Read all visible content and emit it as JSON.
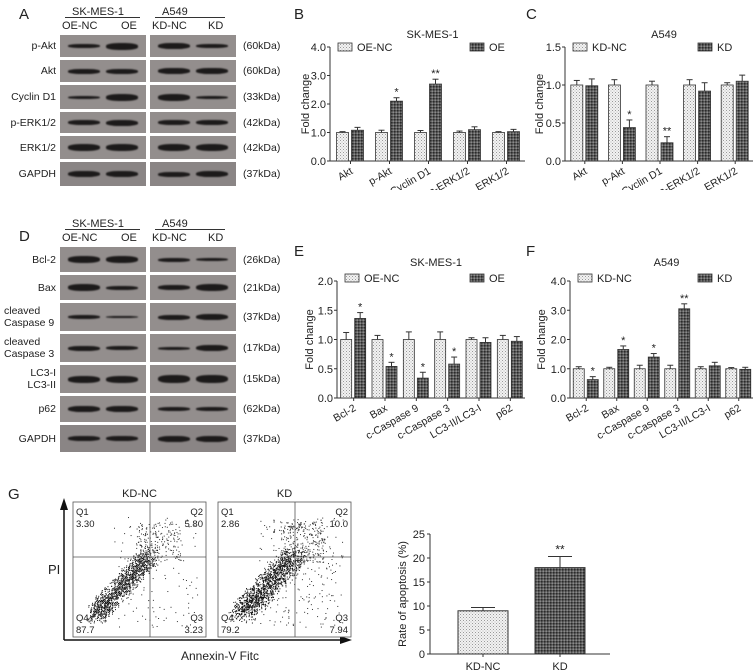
{
  "panels": {
    "A": {
      "letter": "A",
      "groups": [
        {
          "cell_line": "SK-MES-1",
          "lanes": [
            "OE-NC",
            "OE"
          ]
        },
        {
          "cell_line": "A549",
          "lanes": [
            "KD-NC",
            "KD"
          ]
        }
      ],
      "rows": [
        {
          "label": "p-Akt",
          "kda": "(60kDa)"
        },
        {
          "label": "Akt",
          "kda": "(60kDa)"
        },
        {
          "label": "Cyclin D1",
          "kda": "(33kDa)"
        },
        {
          "label": "p-ERK1/2",
          "kda": "(42kDa)"
        },
        {
          "label": "ERK1/2",
          "kda": "(42kDa)"
        },
        {
          "label": "GAPDH",
          "kda": "(37kDa)"
        }
      ]
    },
    "D": {
      "letter": "D",
      "groups": [
        {
          "cell_line": "SK-MES-1",
          "lanes": [
            "OE-NC",
            "OE"
          ]
        },
        {
          "cell_line": "A549",
          "lanes": [
            "KD-NC",
            "KD"
          ]
        }
      ],
      "rows": [
        {
          "label": "Bcl-2",
          "kda": "(26kDa)"
        },
        {
          "label": "Bax",
          "kda": "(21kDa)"
        },
        {
          "label": "cleaved\nCaspase 9",
          "kda": "(37kDa)"
        },
        {
          "label": "cleaved\nCaspase 3",
          "kda": "(17kDa)"
        },
        {
          "label": "LC3-I\nLC3-II",
          "kda": "(15kDa)"
        },
        {
          "label": "p62",
          "kda": "(62kDa)"
        },
        {
          "label": "GAPDH",
          "kda": "(37kDa)"
        }
      ]
    },
    "G": {
      "letter": "G",
      "flow": [
        {
          "title": "KD-NC",
          "Q1": "3.30",
          "Q2": "5.80",
          "Q3": "3.23",
          "Q4": "87.7"
        },
        {
          "title": "KD",
          "Q1": "2.86",
          "Q2": "10.0",
          "Q3": "7.94",
          "Q4": "79.2"
        }
      ],
      "quadrant_labels": [
        "Q1",
        "Q2",
        "Q3",
        "Q4"
      ],
      "y_axis": "PI",
      "x_axis": "Annexin-V Fitc"
    }
  },
  "chart_data": [
    {
      "id": "B",
      "type": "bar",
      "title": "SK-MES-1",
      "ylabel": "Fold change",
      "ylim": [
        0,
        4
      ],
      "yticks": [
        "0.0",
        "1.0",
        "2.0",
        "3.0",
        "4.0"
      ],
      "categories": [
        "Akt",
        "p-Akt",
        "Cyclin D1",
        "p-ERK1/2",
        "ERK1/2"
      ],
      "series": [
        {
          "name": "OE-NC",
          "values": [
            1.0,
            1.0,
            1.0,
            1.0,
            1.0
          ],
          "errors": [
            0.03,
            0.08,
            0.07,
            0.05,
            0.03
          ]
        },
        {
          "name": "OE",
          "values": [
            1.08,
            2.1,
            2.7,
            1.1,
            1.03
          ],
          "errors": [
            0.1,
            0.12,
            0.17,
            0.1,
            0.08
          ]
        }
      ],
      "significance": [
        "",
        "*",
        "**",
        "",
        ""
      ]
    },
    {
      "id": "C",
      "type": "bar",
      "title": "A549",
      "ylabel": "Fold change",
      "ylim": [
        0,
        1.5
      ],
      "yticks": [
        "0.0",
        "0.5",
        "1.0",
        "1.5"
      ],
      "categories": [
        "Akt",
        "p-Akt",
        "Cyclin D1",
        "p-ERK1/2",
        "ERK1/2"
      ],
      "series": [
        {
          "name": "KD-NC",
          "values": [
            1.0,
            1.0,
            1.0,
            1.0,
            1.0
          ],
          "errors": [
            0.06,
            0.07,
            0.05,
            0.07,
            0.03
          ]
        },
        {
          "name": "KD",
          "values": [
            0.99,
            0.44,
            0.24,
            0.92,
            1.05
          ],
          "errors": [
            0.09,
            0.1,
            0.08,
            0.11,
            0.08
          ]
        }
      ],
      "significance": [
        "",
        "*",
        "**",
        "",
        ""
      ]
    },
    {
      "id": "E",
      "type": "bar",
      "title": "SK-MES-1",
      "ylabel": "Fold change",
      "ylim": [
        0,
        2
      ],
      "yticks": [
        "0.0",
        "0.5",
        "1.0",
        "1.5",
        "2.0"
      ],
      "categories": [
        "Bcl-2",
        "Bax",
        "c-Caspase 9",
        "c-Caspase 3",
        "LC3-II/LC3-I",
        "p62"
      ],
      "series": [
        {
          "name": "OE-NC",
          "values": [
            1.0,
            1.0,
            1.0,
            1.0,
            1.0,
            1.0
          ],
          "errors": [
            0.12,
            0.07,
            0.13,
            0.13,
            0.03,
            0.07
          ]
        },
        {
          "name": "OE",
          "values": [
            1.36,
            0.54,
            0.34,
            0.58,
            0.95,
            0.97
          ],
          "errors": [
            0.1,
            0.07,
            0.1,
            0.12,
            0.08,
            0.08
          ]
        }
      ],
      "significance": [
        "*",
        "*",
        "*",
        "*",
        "",
        ""
      ]
    },
    {
      "id": "F",
      "type": "bar",
      "title": "A549",
      "ylabel": "Fold change",
      "ylim": [
        0,
        4
      ],
      "yticks": [
        "0.0",
        "1.0",
        "2.0",
        "3.0",
        "4.0"
      ],
      "categories": [
        "Bcl-2",
        "Bax",
        "c-Caspase 9",
        "c-Caspase 3",
        "LC3-II/LC3-I",
        "p62"
      ],
      "series": [
        {
          "name": "KD-NC",
          "values": [
            1.0,
            1.0,
            1.0,
            1.0,
            1.0,
            1.0
          ],
          "errors": [
            0.07,
            0.05,
            0.12,
            0.12,
            0.07,
            0.04
          ]
        },
        {
          "name": "KD",
          "values": [
            0.63,
            1.66,
            1.4,
            3.05,
            1.1,
            0.98
          ],
          "errors": [
            0.1,
            0.12,
            0.12,
            0.17,
            0.12,
            0.07
          ]
        }
      ],
      "significance": [
        "*",
        "*",
        "*",
        "**",
        "",
        ""
      ]
    },
    {
      "id": "G-bar",
      "type": "bar",
      "title": "",
      "ylabel": "Rate of apoptosis (%)",
      "ylim": [
        0,
        25
      ],
      "yticks": [
        "0",
        "5",
        "10",
        "15",
        "20",
        "25"
      ],
      "categories": [
        "KD-NC",
        "KD"
      ],
      "values": [
        9.0,
        18.0
      ],
      "errors": [
        0.7,
        2.3
      ],
      "significance": [
        "",
        "**"
      ]
    }
  ]
}
